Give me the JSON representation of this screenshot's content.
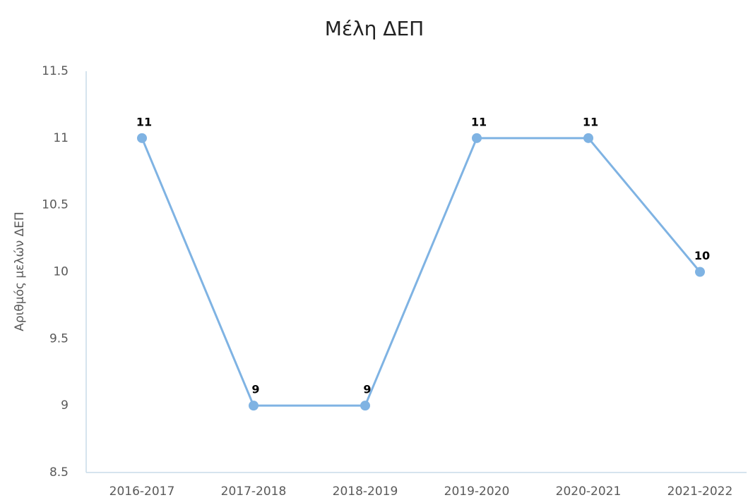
{
  "chart_data": {
    "type": "line",
    "title": "Μέλη ΔΕΠ",
    "y_label": "Αριθμός μελών ΔΕΠ",
    "categories": [
      "2016-2017",
      "2017-2018",
      "2018-2019",
      "2019-2020",
      "2020-2021",
      "2021-2022"
    ],
    "series": [
      {
        "name": "Μέλη ΔΕΠ",
        "color": "#7fb3e3",
        "values": [
          11,
          9,
          9,
          11,
          11,
          10
        ]
      }
    ],
    "ylim": [
      8.5,
      11.5
    ],
    "yticks": [
      8.5,
      9,
      9.5,
      10,
      10.5,
      11,
      11.5
    ],
    "grid": false,
    "legend": false
  }
}
